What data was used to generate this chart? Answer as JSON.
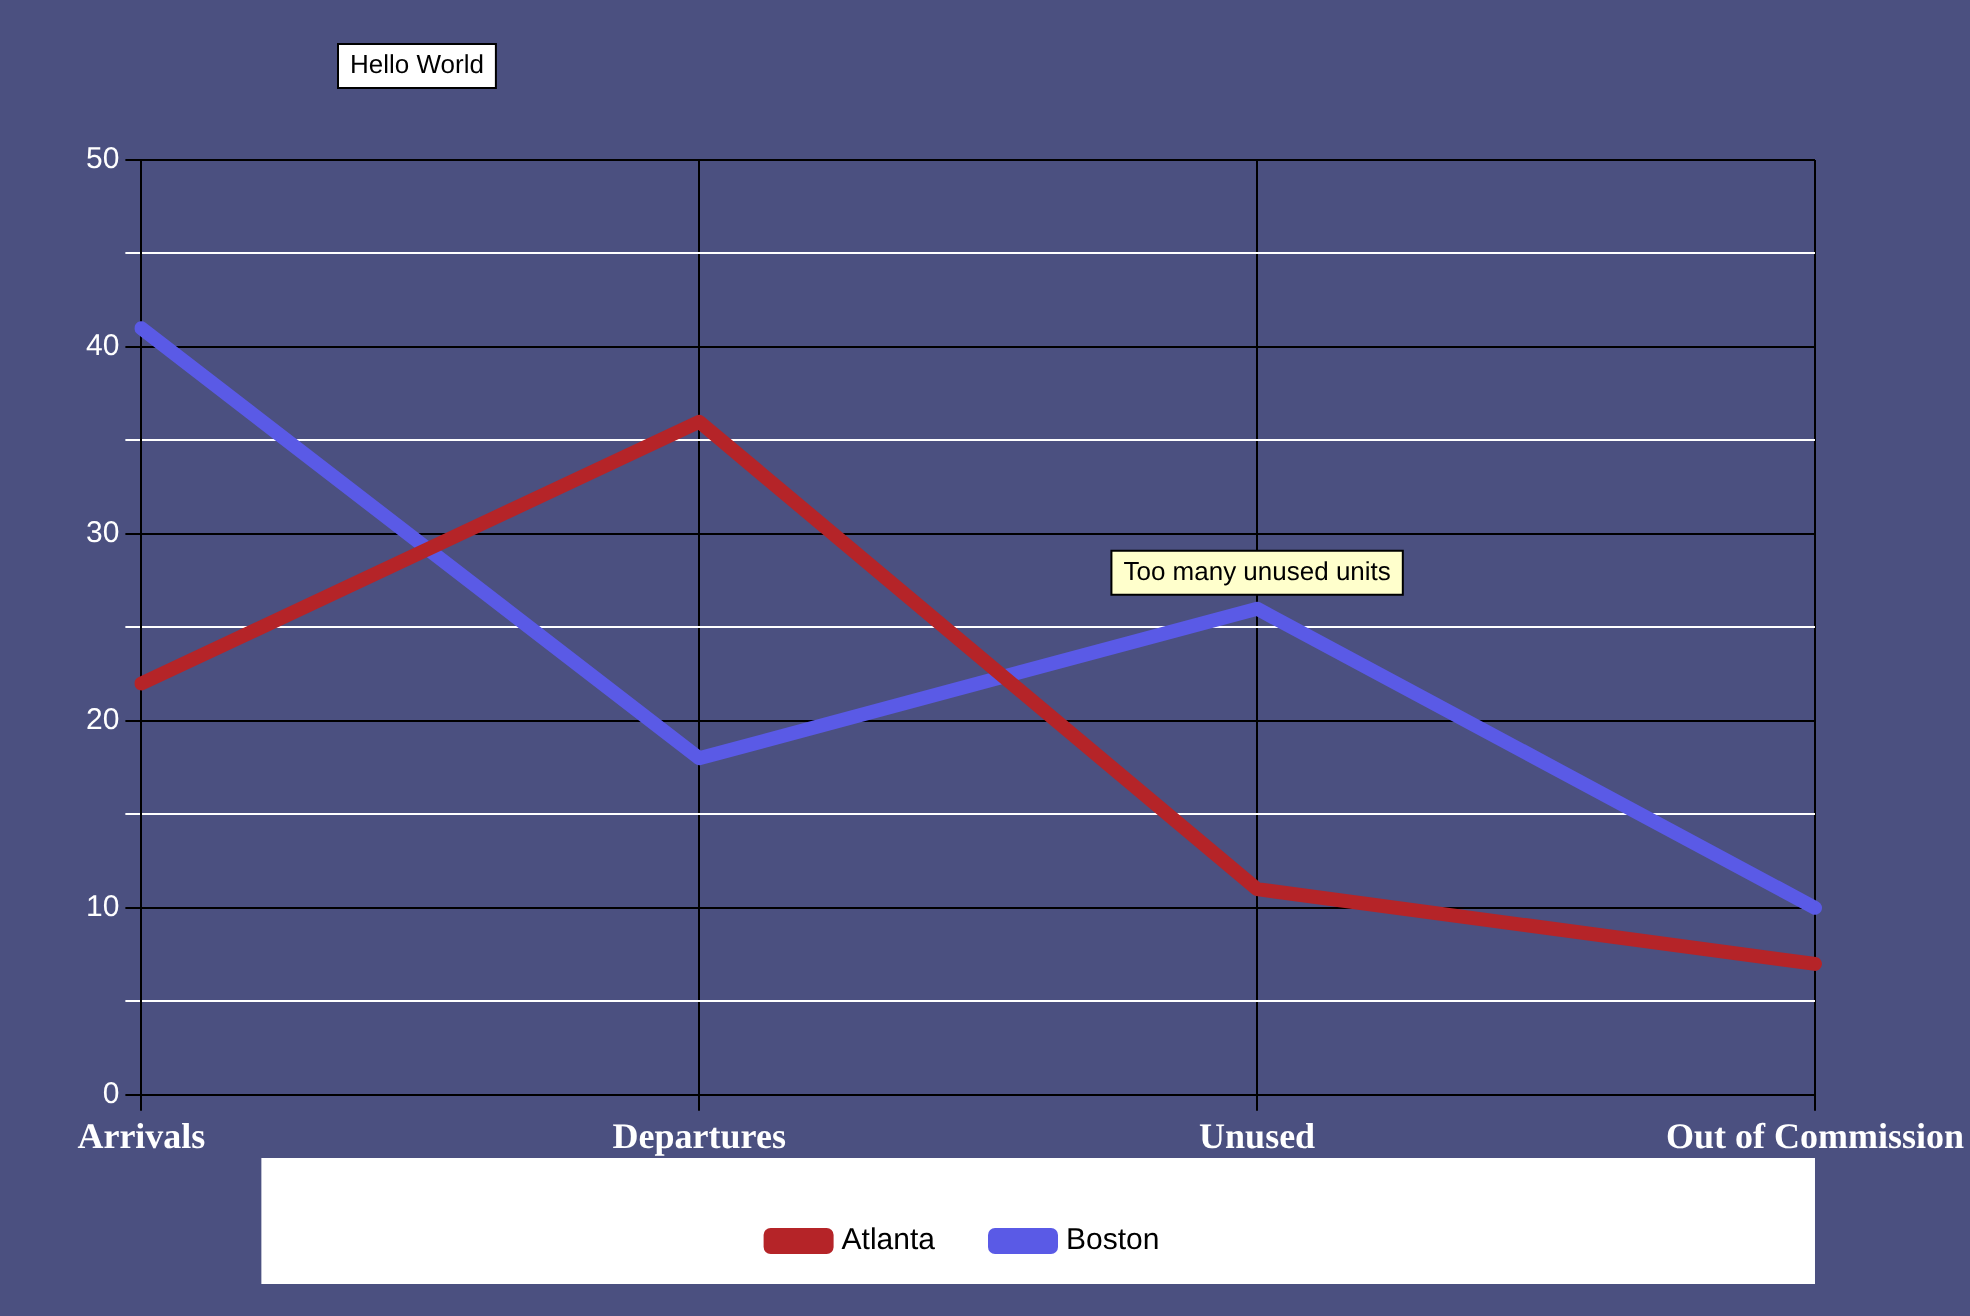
{
  "chart_data": {
    "type": "line",
    "categories": [
      "Arrivals",
      "Departures",
      "Unused",
      "Out of Commission"
    ],
    "series": [
      {
        "name": "Atlanta",
        "color": "#b52428",
        "values": [
          22,
          36,
          11,
          7
        ]
      },
      {
        "name": "Boston",
        "color": "#5a5ae6",
        "values": [
          41,
          18,
          26,
          10
        ]
      }
    ],
    "ylim": [
      0,
      50
    ],
    "yticks": [
      0,
      {
        "value": 5,
        "label": null
      },
      10,
      {
        "value": 15,
        "label": null
      },
      20,
      {
        "value": 25,
        "label": null
      },
      30,
      {
        "value": 35,
        "label": null
      },
      40,
      {
        "value": 45,
        "label": null
      },
      50
    ],
    "grid": true,
    "legend": "bottom",
    "marker": "none",
    "line_style": "solid",
    "annotations": [
      "Hello World",
      {
        "text": "Too many unused units",
        "x": "Unused",
        "y": 26
      }
    ]
  }
}
